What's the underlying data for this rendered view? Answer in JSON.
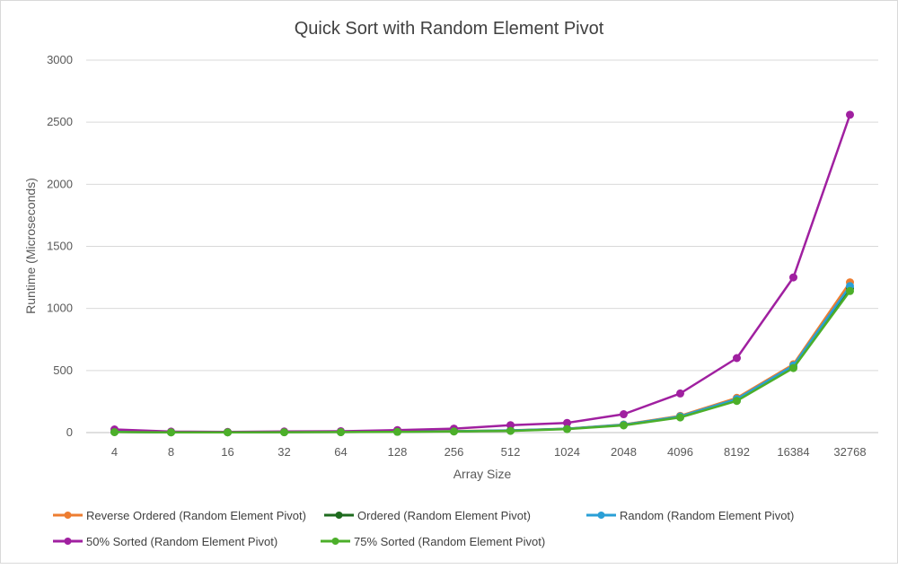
{
  "chart_data": {
    "type": "line",
    "title": "Quick Sort with Random Element Pivot",
    "xlabel": "Array Size",
    "ylabel": "Runtime (Microseconds)",
    "categories": [
      "4",
      "8",
      "16",
      "32",
      "64",
      "128",
      "256",
      "512",
      "1024",
      "2048",
      "4096",
      "8192",
      "16384",
      "32768"
    ],
    "ylim": [
      0,
      3000
    ],
    "yticks": [
      0,
      500,
      1000,
      1500,
      2000,
      2500,
      3000
    ],
    "grid": true,
    "legend_position": "bottom",
    "series": [
      {
        "name": "Reverse Ordered (Random Element Pivot)",
        "color": "#ed7d31",
        "values": [
          6,
          3,
          3,
          4,
          5,
          8,
          12,
          18,
          32,
          65,
          135,
          280,
          550,
          1210
        ]
      },
      {
        "name": "Ordered (Random Element Pivot)",
        "color": "#1e6b1e",
        "values": [
          5,
          3,
          3,
          4,
          4,
          7,
          10,
          16,
          30,
          62,
          128,
          265,
          535,
          1160
        ]
      },
      {
        "name": "Random (Random Element Pivot)",
        "color": "#2a9fd6",
        "values": [
          5,
          3,
          3,
          4,
          5,
          7,
          11,
          17,
          31,
          63,
          130,
          270,
          540,
          1180
        ]
      },
      {
        "name": "50% Sorted (Random Element Pivot)",
        "color": "#a020a0",
        "values": [
          25,
          8,
          5,
          9,
          11,
          20,
          32,
          60,
          78,
          148,
          315,
          600,
          1250,
          2560
        ]
      },
      {
        "name": "75% Sorted (Random Element Pivot)",
        "color": "#4caf2a",
        "values": [
          4,
          2,
          2,
          3,
          4,
          6,
          9,
          14,
          28,
          58,
          122,
          255,
          520,
          1140
        ]
      }
    ]
  }
}
